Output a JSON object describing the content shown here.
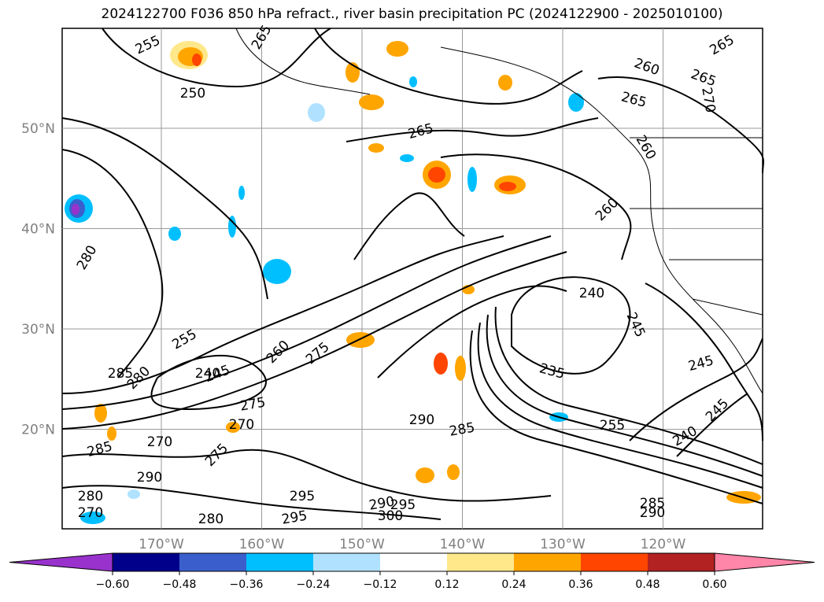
{
  "title": "2024122700 F036 850 hPa refract., river basin precipitation PC (2024122900 - 2025010100)",
  "map": {
    "lat_labels": [
      {
        "text": "50°N",
        "lat": 50
      },
      {
        "text": "40°N",
        "lat": 40
      },
      {
        "text": "30°N",
        "lat": 30
      },
      {
        "text": "20°N",
        "lat": 20
      }
    ],
    "lon_labels": [
      {
        "text": "170°W",
        "lon": -170
      },
      {
        "text": "160°W",
        "lon": -160
      },
      {
        "text": "150°W",
        "lon": -150
      },
      {
        "text": "140°W",
        "lon": -140
      },
      {
        "text": "130°W",
        "lon": -130
      },
      {
        "text": "120°W",
        "lon": -120
      }
    ],
    "contour_labels": [
      "255",
      "250",
      "265",
      "260",
      "265",
      "265",
      "270",
      "260",
      "265",
      "265",
      "280",
      "260",
      "240",
      "245",
      "255",
      "260",
      "275",
      "285",
      "280",
      "240",
      "245",
      "275",
      "270",
      "290",
      "285",
      "255",
      "235",
      "245",
      "240",
      "245",
      "285",
      "280",
      "290",
      "295",
      "280",
      "295",
      "290",
      "300",
      "285",
      "290",
      "295",
      "270",
      "275",
      "270"
    ]
  },
  "colorbar": {
    "ticks": [
      "−0.60",
      "−0.48",
      "−0.36",
      "−0.24",
      "−0.12",
      "0.12",
      "0.24",
      "0.36",
      "0.48",
      "0.60"
    ],
    "colors": [
      "#9932cc",
      "#00008b",
      "#3a5fcd",
      "#00bfff",
      "#b0e2ff",
      "#ffffff",
      "#ffe88a",
      "#ffa500",
      "#ff4500",
      "#b22222",
      "#ff86a8"
    ]
  }
}
